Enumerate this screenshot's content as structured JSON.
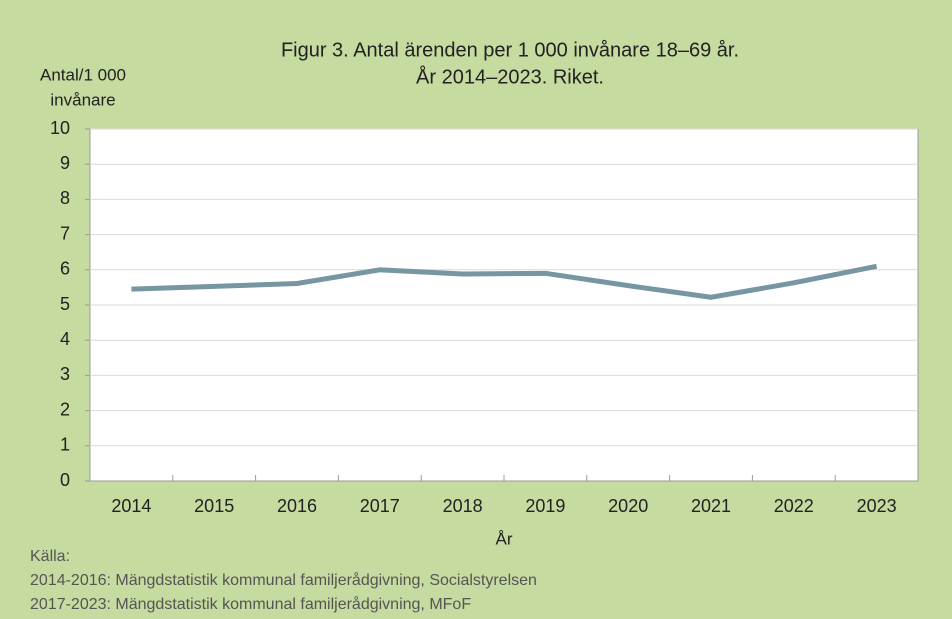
{
  "chart_data": {
    "type": "line",
    "title": [
      "Figur 3. Antal ärenden per 1 000 invånare 18–69 år.",
      "År 2014–2023. Riket."
    ],
    "ylabel": [
      "Antal/1 000",
      "invånare"
    ],
    "xlabel": "År",
    "categories": [
      "2014",
      "2015",
      "2016",
      "2017",
      "2018",
      "2019",
      "2020",
      "2021",
      "2022",
      "2023"
    ],
    "series": [
      {
        "name": "Riket",
        "color": "#7895a2",
        "values": [
          5.45,
          5.53,
          5.61,
          6.0,
          5.88,
          5.9,
          5.55,
          5.22,
          5.63,
          6.1
        ]
      }
    ],
    "ylim": [
      0,
      10
    ],
    "yticks": [
      0,
      1,
      2,
      3,
      4,
      5,
      6,
      7,
      8,
      9,
      10
    ],
    "grid": true,
    "source": [
      "Källa:",
      "2014-2016: Mängdstatistik kommunal familjerådgivning, Socialstyrelsen",
      "2017-2023: Mängdstatistik kommunal familjerådgivning, MFoF"
    ]
  }
}
